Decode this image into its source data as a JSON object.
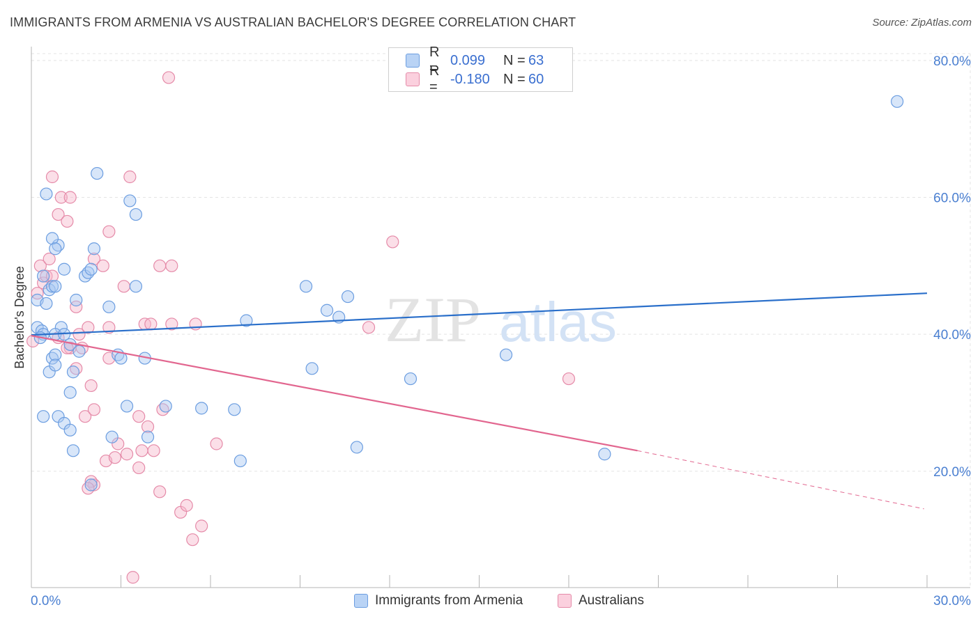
{
  "header": {
    "title": "IMMIGRANTS FROM ARMENIA VS AUSTRALIAN BACHELOR'S DEGREE CORRELATION CHART",
    "source": "Source: ZipAtlas.com"
  },
  "watermark": {
    "zip": "ZIP",
    "atlas": "atlas"
  },
  "legend": {
    "blue": {
      "r_label": "R =",
      "r_value": "0.099",
      "n_label": "N =",
      "n_value": "63"
    },
    "pink": {
      "r_label": "R =",
      "r_value": "-0.180",
      "n_label": "N =",
      "n_value": "60"
    }
  },
  "colors": {
    "blue_fill": "#a9c8f2",
    "blue_stroke": "#6b9de0",
    "blue_line": "#2a6fca",
    "pink_fill": "#f6b8cc",
    "pink_stroke": "#e58aa8",
    "pink_line": "#e2668f",
    "grid": "#e4e4e4",
    "tick_text": "#4a7fd1"
  },
  "chart_data": {
    "type": "scatter",
    "title": "IMMIGRANTS FROM ARMENIA VS AUSTRALIAN BACHELOR'S DEGREE CORRELATION CHART",
    "xlabel": "",
    "ylabel": "Bachelor's Degree",
    "xlim": [
      0,
      30
    ],
    "ylim": [
      3,
      81
    ],
    "x_tick_labels": [
      "0.0%",
      "30.0%"
    ],
    "y_ticks": [
      20,
      40,
      60,
      80
    ],
    "y_tick_labels": [
      "20.0%",
      "40.0%",
      "60.0%",
      "80.0%"
    ],
    "series": [
      {
        "name": "Immigrants from Armenia",
        "color": "blue",
        "trend": {
          "x0": 0,
          "y0": 39.9,
          "x1": 30,
          "y1": 46.0
        },
        "points": [
          [
            0.2,
            41
          ],
          [
            0.35,
            40.5
          ],
          [
            0.4,
            40
          ],
          [
            0.3,
            39.5
          ],
          [
            0.2,
            45
          ],
          [
            0.5,
            44.5
          ],
          [
            0.4,
            48.5
          ],
          [
            0.6,
            46.5
          ],
          [
            0.7,
            47
          ],
          [
            0.8,
            47
          ],
          [
            1.0,
            41
          ],
          [
            0.9,
            53
          ],
          [
            1.1,
            49.5
          ],
          [
            0.7,
            54
          ],
          [
            0.8,
            52.5
          ],
          [
            0.5,
            60.5
          ],
          [
            0.8,
            40
          ],
          [
            0.7,
            36.5
          ],
          [
            0.6,
            34.5
          ],
          [
            0.8,
            37
          ],
          [
            0.8,
            35.5
          ],
          [
            1.3,
            38.5
          ],
          [
            1.5,
            45
          ],
          [
            1.8,
            48.5
          ],
          [
            1.9,
            49
          ],
          [
            2.0,
            49.5
          ],
          [
            2.1,
            52.5
          ],
          [
            2.2,
            63.5
          ],
          [
            2.6,
            44
          ],
          [
            2.9,
            37
          ],
          [
            3.0,
            36.5
          ],
          [
            3.3,
            59.5
          ],
          [
            3.5,
            57.5
          ],
          [
            3.5,
            47
          ],
          [
            3.8,
            36.5
          ],
          [
            1.1,
            40
          ],
          [
            1.4,
            34.5
          ],
          [
            1.3,
            31.5
          ],
          [
            0.9,
            28
          ],
          [
            1.1,
            27
          ],
          [
            1.3,
            26
          ],
          [
            1.4,
            23
          ],
          [
            2.0,
            18
          ],
          [
            2.7,
            25
          ],
          [
            3.2,
            29.5
          ],
          [
            3.9,
            25
          ],
          [
            4.5,
            29.5
          ],
          [
            5.7,
            29.2
          ],
          [
            6.8,
            29
          ],
          [
            7.0,
            21.5
          ],
          [
            7.2,
            42
          ],
          [
            9.2,
            47
          ],
          [
            9.4,
            35
          ],
          [
            9.9,
            43.5
          ],
          [
            10.3,
            42.5
          ],
          [
            10.6,
            45.5
          ],
          [
            10.9,
            23.5
          ],
          [
            12.7,
            33.5
          ],
          [
            15.9,
            37
          ],
          [
            19.2,
            22.5
          ],
          [
            29.0,
            74
          ],
          [
            0.4,
            28
          ],
          [
            1.6,
            37.5
          ]
        ]
      },
      {
        "name": "Australians",
        "color": "pink",
        "trend": {
          "x0": 0,
          "y0": 39.8,
          "x1": 20.3,
          "y1": 23.0,
          "dash_x1": 29.9,
          "dash_y1": 14.5
        },
        "points": [
          [
            0.05,
            39
          ],
          [
            0.2,
            46
          ],
          [
            0.3,
            50
          ],
          [
            0.4,
            47.5
          ],
          [
            0.5,
            48.5
          ],
          [
            0.6,
            51
          ],
          [
            0.7,
            48.5
          ],
          [
            0.7,
            63
          ],
          [
            0.9,
            57.5
          ],
          [
            1.0,
            60
          ],
          [
            1.2,
            56.5
          ],
          [
            1.3,
            60
          ],
          [
            1.5,
            44
          ],
          [
            1.6,
            40
          ],
          [
            1.7,
            38
          ],
          [
            1.9,
            41
          ],
          [
            2.1,
            51
          ],
          [
            2.4,
            50
          ],
          [
            2.6,
            55
          ],
          [
            2.6,
            36.5
          ],
          [
            3.1,
            47
          ],
          [
            3.3,
            63
          ],
          [
            3.8,
            41.5
          ],
          [
            4.0,
            41.5
          ],
          [
            4.3,
            50
          ],
          [
            4.7,
            50
          ],
          [
            4.6,
            77.5
          ],
          [
            1.3,
            38
          ],
          [
            1.5,
            35
          ],
          [
            1.8,
            28
          ],
          [
            2.0,
            32.5
          ],
          [
            2.1,
            29
          ],
          [
            2.5,
            21.5
          ],
          [
            2.8,
            22
          ],
          [
            2.9,
            24
          ],
          [
            3.2,
            22.5
          ],
          [
            3.6,
            20.5
          ],
          [
            3.7,
            23
          ],
          [
            3.9,
            26.5
          ],
          [
            4.1,
            23
          ],
          [
            4.3,
            17
          ],
          [
            4.4,
            29
          ],
          [
            5.0,
            14
          ],
          [
            5.2,
            15
          ],
          [
            5.4,
            10
          ],
          [
            5.7,
            12
          ],
          [
            6.2,
            24
          ],
          [
            2.1,
            18
          ],
          [
            2.0,
            18.5
          ],
          [
            1.9,
            17.5
          ],
          [
            3.4,
            4.5
          ],
          [
            11.3,
            41
          ],
          [
            12.1,
            53.5
          ],
          [
            18.0,
            33.5
          ],
          [
            0.9,
            39.5
          ],
          [
            1.2,
            38
          ],
          [
            2.6,
            41
          ],
          [
            3.6,
            28
          ],
          [
            4.7,
            41.5
          ],
          [
            5.5,
            41.5
          ]
        ]
      }
    ],
    "legend_position": "bottom-center"
  },
  "bottom_legend": {
    "blue_label": "Immigrants from Armenia",
    "pink_label": "Australians"
  }
}
